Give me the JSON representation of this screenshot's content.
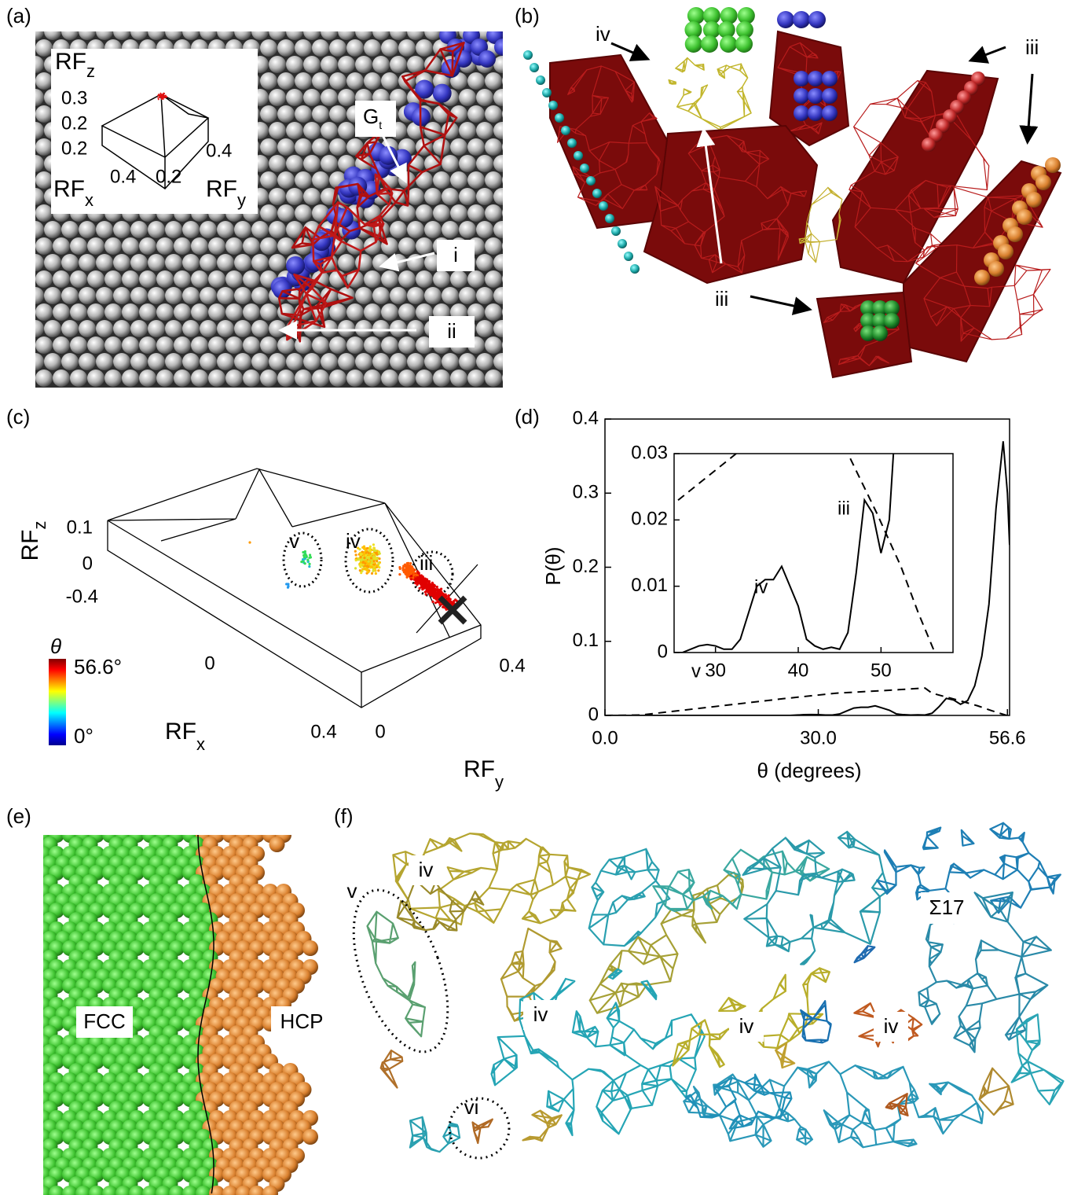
{
  "panels": {
    "a": {
      "label": "(a)",
      "inset": {
        "z_axis": {
          "text": "RF",
          "sub": "z"
        },
        "x_axis": {
          "text": "RF",
          "sub": "x"
        },
        "y_axis": {
          "text": "RF",
          "sub": "y"
        },
        "ticks": [
          "0.3",
          "0.2",
          "0.2",
          "0.4",
          "0.2",
          "0.4"
        ]
      },
      "callouts": [
        {
          "text": "G",
          "sub": "t"
        },
        {
          "text": "i"
        },
        {
          "text": "ii"
        }
      ]
    },
    "b": {
      "label": "(b)",
      "callouts": [
        "iv",
        "iii",
        "iii",
        "iii"
      ]
    },
    "c": {
      "label": "(c)",
      "z_axis": {
        "text": "RF",
        "sub": "z"
      },
      "x_axis": {
        "text": "RF",
        "sub": "x"
      },
      "y_axis": {
        "text": "RF",
        "sub": "y"
      },
      "z_ticks": [
        "0.1",
        "0",
        "-0.4"
      ],
      "x_ticks": [
        "0",
        "0.4"
      ],
      "y_ticks": [
        "0",
        "0.4"
      ],
      "clusters": [
        "v",
        "iv",
        "iii"
      ],
      "colorbar": {
        "symbol": "θ",
        "max": "56.6°",
        "min": "0°"
      }
    },
    "d": {
      "label": "(d)",
      "inset_labels": [
        "v",
        "iv",
        "iii"
      ]
    },
    "e": {
      "label": "(e)",
      "phases": [
        "FCC",
        "HCP"
      ]
    },
    "f": {
      "label": "(f)",
      "callouts": [
        "iv",
        "v",
        "iv",
        "iv",
        "iv",
        "vi",
        "Σ17"
      ]
    }
  },
  "chart_data": {
    "type": "line",
    "y_label": "P(θ)",
    "x_label": "θ (degrees)",
    "xlim": [
      0,
      56.9
    ],
    "ylim": [
      0,
      0.4
    ],
    "xticks": [
      {
        "value": 0,
        "label": "0.0"
      },
      {
        "value": 30,
        "label": "30.0"
      },
      56.6
    ],
    "yticks": [
      0,
      0.1,
      0.2,
      0.3,
      0.4
    ],
    "series": [
      {
        "color": "#000000",
        "dash": "solid",
        "x": [
          0,
          10,
          20,
          26,
          27,
          28,
          29,
          30,
          31,
          32,
          33,
          34,
          35,
          36,
          37,
          38,
          39,
          40,
          41,
          42,
          43,
          44,
          45,
          46,
          47,
          48,
          49,
          50,
          51,
          52,
          53,
          54,
          55,
          56,
          56.6,
          56.9
        ],
        "values": [
          0,
          0,
          0,
          0,
          0.0005,
          0.001,
          0.0012,
          0.001,
          0.0005,
          0.0005,
          0.002,
          0.006,
          0.01,
          0.011,
          0.011,
          0.013,
          0.01,
          0.007,
          0.002,
          0.001,
          0.0005,
          0.0008,
          0.0005,
          0.003,
          0.012,
          0.023,
          0.021,
          0.015,
          0.02,
          0.04,
          0.08,
          0.15,
          0.28,
          0.37,
          0.3,
          0.23
        ]
      },
      {
        "color": "#000000",
        "dash": "dashed",
        "x": [
          0,
          5,
          25,
          32.5,
          40,
          45,
          46,
          49.5,
          52.4,
          54.5,
          56.5
        ],
        "values": [
          0,
          0.0005,
          0.0225,
          0.03,
          0.034,
          0.037,
          0.03,
          0.021,
          0.013,
          0.006,
          0
        ]
      }
    ],
    "inset": {
      "xlim": [
        25,
        58.7
      ],
      "ylim": [
        0,
        0.03
      ],
      "xticks": [
        30,
        40,
        50
      ],
      "yticks": [
        0,
        0.01,
        0.02,
        0.03
      ]
    }
  }
}
